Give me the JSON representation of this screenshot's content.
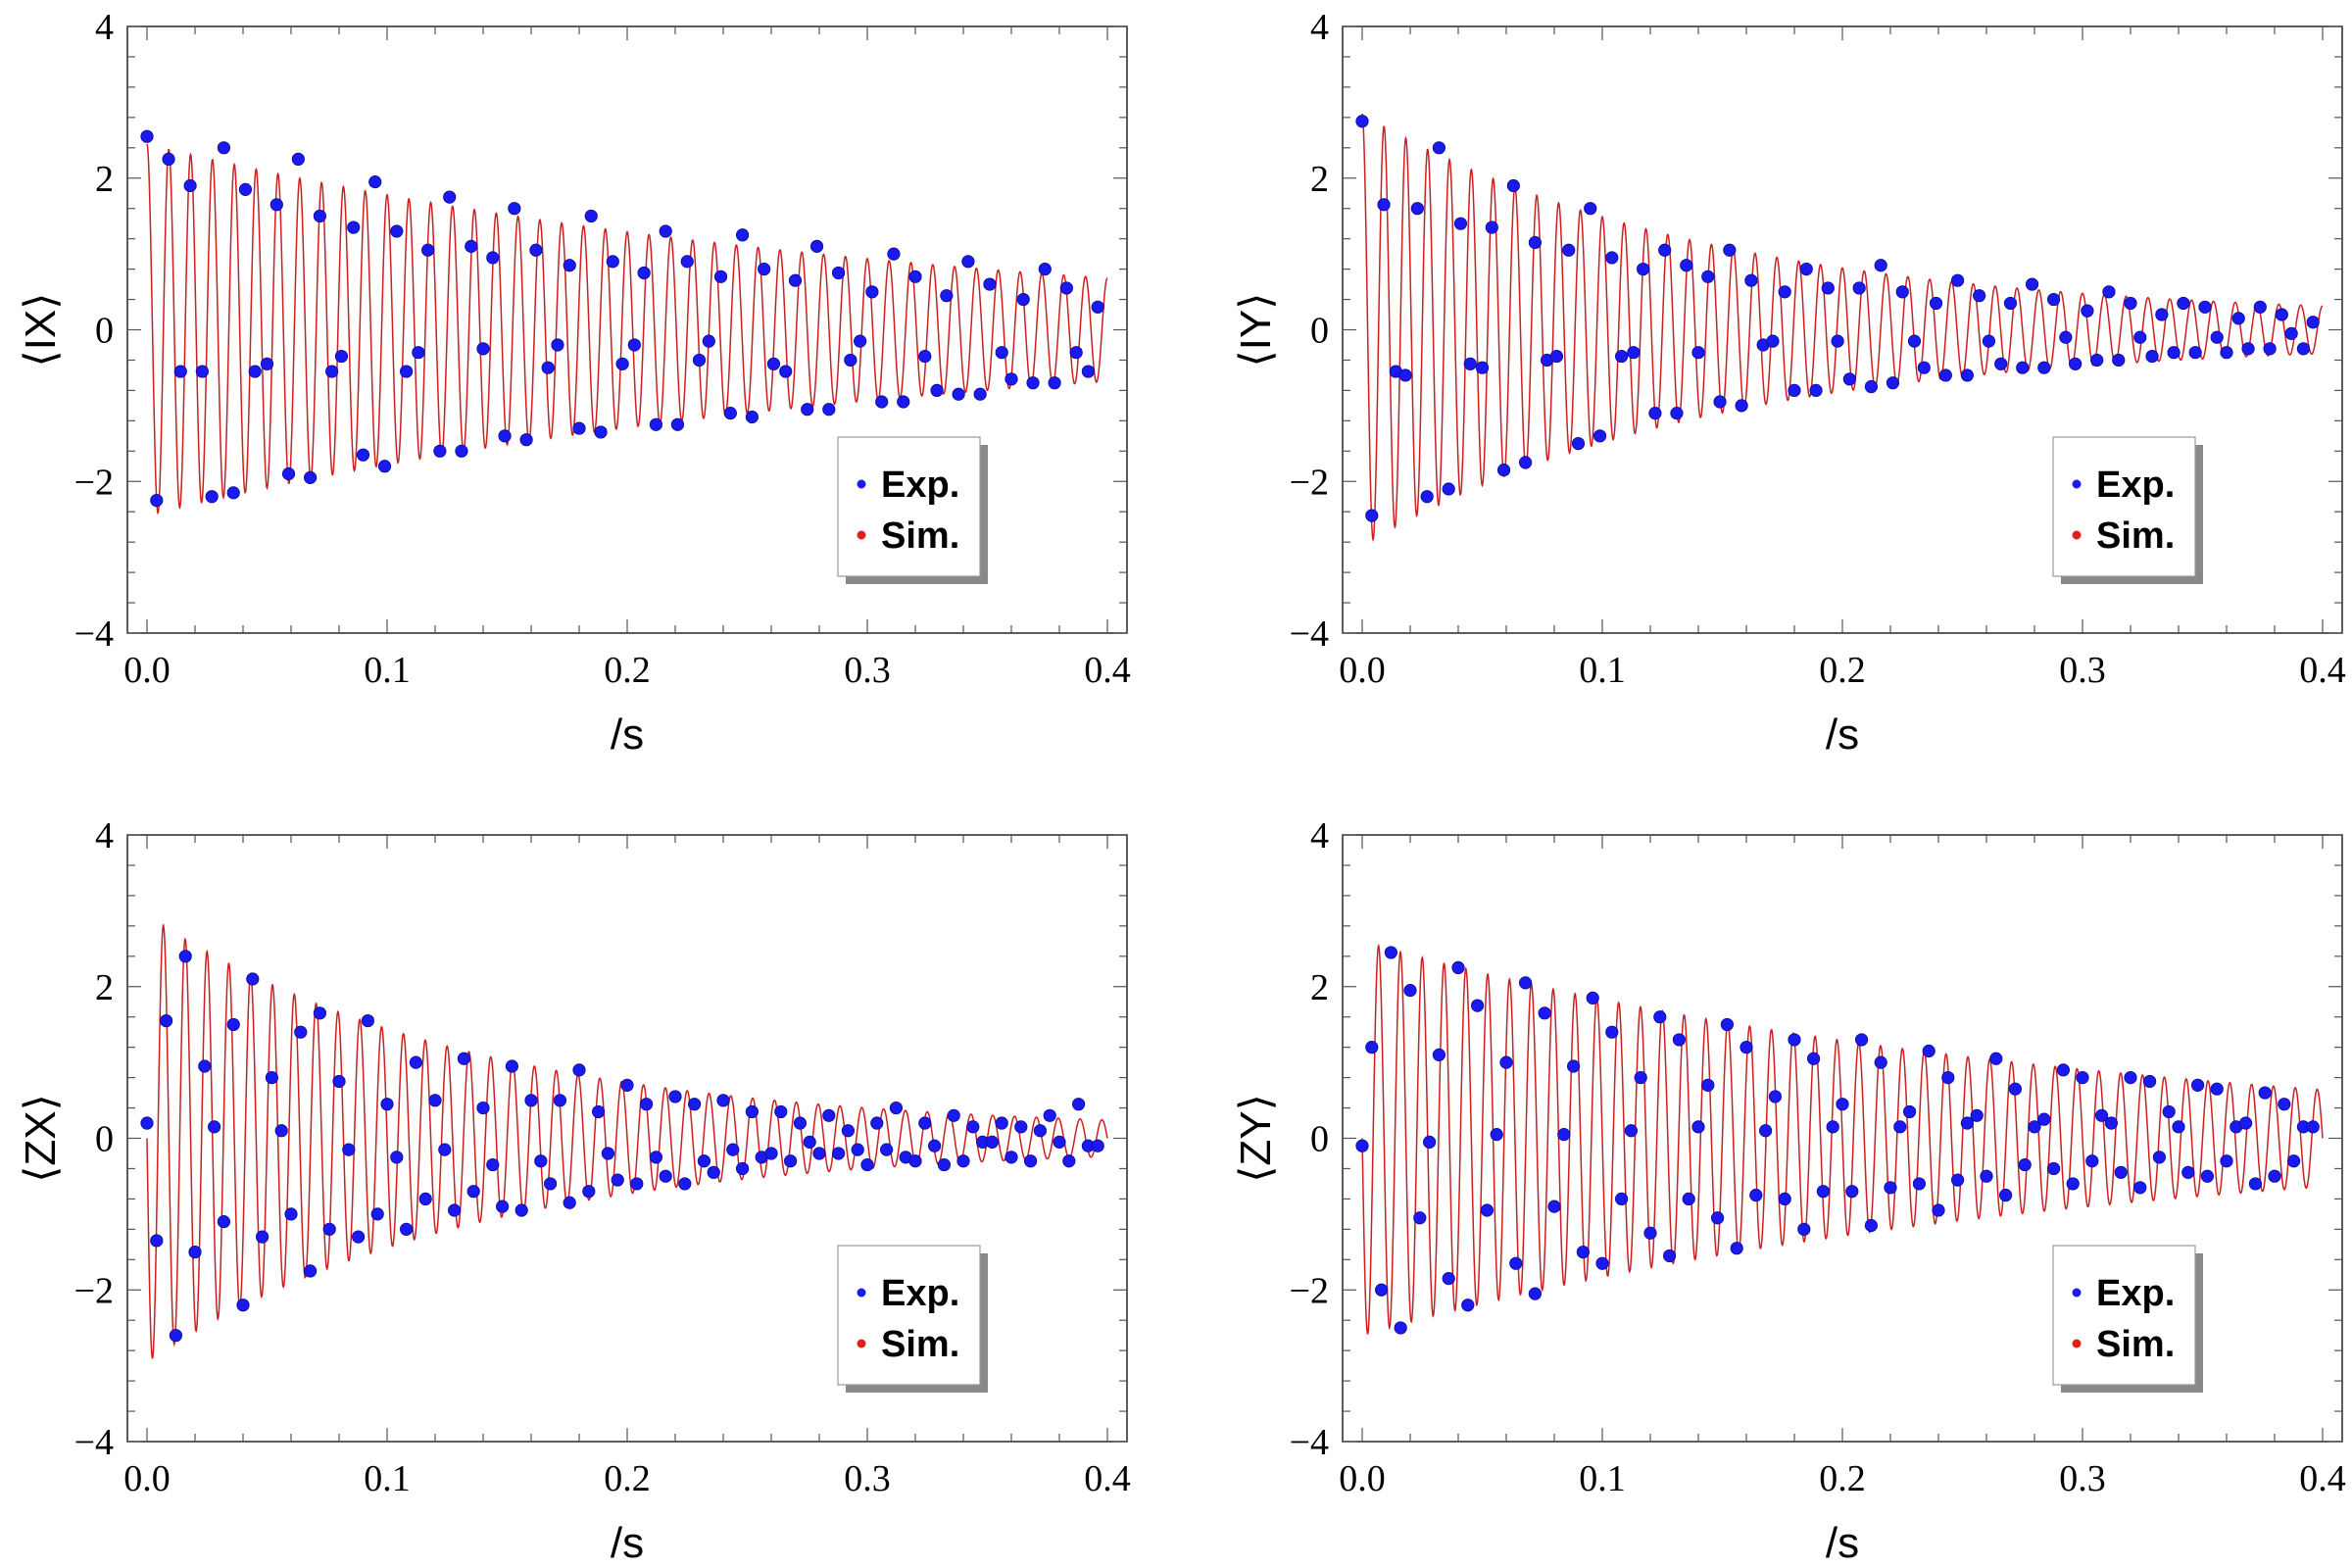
{
  "chart_data": [
    {
      "type": "scatter",
      "panel": "top-left",
      "ylabel": "⟨IX⟩",
      "xlabel": "/s",
      "xlim": [
        0.0,
        0.4
      ],
      "ylim": [
        -4,
        4
      ],
      "x_ticks": [
        "0.0",
        "0.1",
        "0.2",
        "0.3",
        "0.4"
      ],
      "y_ticks": [
        "−4",
        "−2",
        "0",
        "2",
        "4"
      ],
      "legend": [
        {
          "label": "Exp.",
          "color": "#1a1aee"
        },
        {
          "label": "Sim.",
          "color": "#e0201a"
        }
      ],
      "legend_position": "bottom-right",
      "series": [
        {
          "name": "Sim.",
          "kind": "line",
          "color": "#cc2020",
          "model": {
            "amplitude": 2.45,
            "decay_per_s": 3.2,
            "floor": 0.0,
            "frequency_hz": 110,
            "phase_rad": 0.0
          }
        },
        {
          "name": "Exp.",
          "kind": "points",
          "color": "#1a1aee",
          "x": [
            0.0,
            0.004,
            0.009,
            0.014,
            0.018,
            0.023,
            0.027,
            0.032,
            0.036,
            0.041,
            0.045,
            0.05,
            0.054,
            0.059,
            0.063,
            0.068,
            0.072,
            0.077,
            0.081,
            0.086,
            0.09,
            0.095,
            0.099,
            0.104,
            0.108,
            0.113,
            0.117,
            0.122,
            0.126,
            0.131,
            0.135,
            0.14,
            0.144,
            0.149,
            0.153,
            0.158,
            0.162,
            0.167,
            0.171,
            0.176,
            0.18,
            0.185,
            0.189,
            0.194,
            0.198,
            0.203,
            0.207,
            0.212,
            0.216,
            0.221,
            0.225,
            0.23,
            0.234,
            0.239,
            0.243,
            0.248,
            0.252,
            0.257,
            0.261,
            0.266,
            0.27,
            0.275,
            0.279,
            0.284,
            0.288,
            0.293,
            0.297,
            0.302,
            0.306,
            0.311,
            0.315,
            0.32,
            0.324,
            0.329,
            0.333,
            0.338,
            0.342,
            0.347,
            0.351,
            0.356,
            0.36,
            0.365,
            0.369,
            0.374,
            0.378,
            0.383,
            0.387,
            0.392,
            0.396
          ],
          "y": [
            2.55,
            -2.25,
            2.25,
            -0.55,
            1.9,
            -0.55,
            -2.2,
            2.4,
            -2.15,
            1.85,
            -0.55,
            -0.45,
            1.65,
            -1.9,
            2.25,
            -1.95,
            1.5,
            -0.55,
            -0.35,
            1.35,
            -1.65,
            1.95,
            -1.8,
            1.3,
            -0.55,
            -0.3,
            1.05,
            -1.6,
            1.75,
            -1.6,
            1.1,
            -0.25,
            0.95,
            -1.4,
            1.6,
            -1.45,
            1.05,
            -0.5,
            -0.2,
            0.85,
            -1.3,
            1.5,
            -1.35,
            0.9,
            -0.45,
            -0.2,
            0.75,
            -1.25,
            1.3,
            -1.25,
            0.9,
            -0.4,
            -0.15,
            0.7,
            -1.1,
            1.25,
            -1.15,
            0.8,
            -0.45,
            -0.55,
            0.65,
            -1.05,
            1.1,
            -1.05,
            0.75,
            -0.4,
            -0.15,
            0.5,
            -0.95,
            1.0,
            -0.95,
            0.7,
            -0.35,
            -0.8,
            0.45,
            -0.85,
            0.9,
            -0.85,
            0.6,
            -0.3,
            -0.65,
            0.4,
            -0.7,
            0.8,
            -0.7,
            0.55,
            -0.3,
            -0.55,
            0.3
          ]
        }
      ]
    },
    {
      "type": "scatter",
      "panel": "top-right",
      "ylabel": "⟨IY⟩",
      "xlabel": "/s",
      "xlim": [
        0.0,
        0.4
      ],
      "ylim": [
        -4,
        4
      ],
      "x_ticks": [
        "0.0",
        "0.1",
        "0.2",
        "0.3",
        "0.4"
      ],
      "y_ticks": [
        "−4",
        "−2",
        "0",
        "2",
        "4"
      ],
      "legend": [
        {
          "label": "Exp.",
          "color": "#1a1aee"
        },
        {
          "label": "Sim.",
          "color": "#e0201a"
        }
      ],
      "legend_position": "bottom-right",
      "series": [
        {
          "name": "Sim.",
          "kind": "line",
          "color": "#cc2020",
          "model": {
            "amplitude": 2.7,
            "decay_per_s": 7.0,
            "floor": 0.15,
            "frequency_hz": 110,
            "phase_rad": 0.0
          }
        },
        {
          "name": "Exp.",
          "kind": "points",
          "color": "#1a1aee",
          "x": [
            0.0,
            0.004,
            0.009,
            0.014,
            0.018,
            0.023,
            0.027,
            0.032,
            0.036,
            0.041,
            0.045,
            0.05,
            0.054,
            0.059,
            0.063,
            0.068,
            0.072,
            0.077,
            0.081,
            0.086,
            0.09,
            0.095,
            0.099,
            0.104,
            0.108,
            0.113,
            0.117,
            0.122,
            0.126,
            0.131,
            0.135,
            0.14,
            0.144,
            0.149,
            0.153,
            0.158,
            0.162,
            0.167,
            0.171,
            0.176,
            0.18,
            0.185,
            0.189,
            0.194,
            0.198,
            0.203,
            0.207,
            0.212,
            0.216,
            0.221,
            0.225,
            0.23,
            0.234,
            0.239,
            0.243,
            0.248,
            0.252,
            0.257,
            0.261,
            0.266,
            0.27,
            0.275,
            0.279,
            0.284,
            0.288,
            0.293,
            0.297,
            0.302,
            0.306,
            0.311,
            0.315,
            0.32,
            0.324,
            0.329,
            0.333,
            0.338,
            0.342,
            0.347,
            0.351,
            0.356,
            0.36,
            0.365,
            0.369,
            0.374,
            0.378,
            0.383,
            0.387,
            0.392,
            0.396
          ],
          "y": [
            2.75,
            -2.45,
            1.65,
            -0.55,
            -0.6,
            1.6,
            -2.2,
            2.4,
            -2.1,
            1.4,
            -0.45,
            -0.5,
            1.35,
            -1.85,
            1.9,
            -1.75,
            1.15,
            -0.4,
            -0.35,
            1.05,
            -1.5,
            1.6,
            -1.4,
            0.95,
            -0.35,
            -0.3,
            0.8,
            -1.1,
            1.05,
            -1.1,
            0.85,
            -0.3,
            0.7,
            -0.95,
            1.05,
            -1.0,
            0.65,
            -0.2,
            -0.15,
            0.5,
            -0.8,
            0.8,
            -0.8,
            0.55,
            -0.15,
            -0.65,
            0.55,
            -0.75,
            0.85,
            -0.7,
            0.5,
            -0.15,
            -0.5,
            0.35,
            -0.6,
            0.65,
            -0.6,
            0.45,
            -0.15,
            -0.45,
            0.35,
            -0.5,
            0.6,
            -0.5,
            0.4,
            -0.1,
            -0.45,
            0.25,
            -0.4,
            0.5,
            -0.4,
            0.35,
            -0.1,
            -0.35,
            0.2,
            -0.3,
            0.35,
            -0.3,
            0.3,
            -0.1,
            -0.3,
            0.15,
            -0.25,
            0.3,
            -0.25,
            0.2,
            -0.05,
            -0.25,
            0.1
          ]
        }
      ]
    },
    {
      "type": "scatter",
      "panel": "bottom-left",
      "ylabel": "⟨ZX⟩",
      "xlabel": "/s",
      "xlim": [
        0.0,
        0.4
      ],
      "ylim": [
        -4,
        4
      ],
      "x_ticks": [
        "0.0",
        "0.1",
        "0.2",
        "0.3",
        "0.4"
      ],
      "y_ticks": [
        "−4",
        "−2",
        "0",
        "2",
        "4"
      ],
      "legend": [
        {
          "label": "Exp.",
          "color": "#1a1aee"
        },
        {
          "label": "Sim.",
          "color": "#e0201a"
        }
      ],
      "legend_position": "bottom-right",
      "series": [
        {
          "name": "Sim.",
          "kind": "line",
          "color": "#cc2020",
          "model": {
            "amplitude": 2.85,
            "decay_per_s": 7.5,
            "floor": 0.1,
            "frequency_hz": 110,
            "phase_rad": 1.5708
          }
        },
        {
          "name": "Exp.",
          "kind": "points",
          "color": "#1a1aee",
          "x": [
            0.0,
            0.004,
            0.008,
            0.012,
            0.016,
            0.02,
            0.024,
            0.028,
            0.032,
            0.036,
            0.04,
            0.044,
            0.048,
            0.052,
            0.056,
            0.06,
            0.064,
            0.068,
            0.072,
            0.076,
            0.08,
            0.084,
            0.088,
            0.092,
            0.096,
            0.1,
            0.104,
            0.108,
            0.112,
            0.116,
            0.12,
            0.124,
            0.128,
            0.132,
            0.136,
            0.14,
            0.144,
            0.148,
            0.152,
            0.156,
            0.16,
            0.164,
            0.168,
            0.172,
            0.176,
            0.18,
            0.184,
            0.188,
            0.192,
            0.196,
            0.2,
            0.204,
            0.208,
            0.212,
            0.216,
            0.22,
            0.224,
            0.228,
            0.232,
            0.236,
            0.24,
            0.244,
            0.248,
            0.252,
            0.256,
            0.26,
            0.264,
            0.268,
            0.272,
            0.276,
            0.28,
            0.284,
            0.288,
            0.292,
            0.296,
            0.3,
            0.304,
            0.308,
            0.312,
            0.316,
            0.32,
            0.324,
            0.328,
            0.332,
            0.336,
            0.34,
            0.344,
            0.348,
            0.352,
            0.356,
            0.36,
            0.364,
            0.368,
            0.372,
            0.376,
            0.38,
            0.384,
            0.388,
            0.392,
            0.396
          ],
          "y": [
            0.2,
            -1.35,
            1.55,
            -2.6,
            2.4,
            -1.5,
            0.95,
            0.15,
            -1.1,
            1.5,
            -2.2,
            2.1,
            -1.3,
            0.8,
            0.1,
            -1.0,
            1.4,
            -1.75,
            1.65,
            -1.2,
            0.75,
            -0.15,
            -1.3,
            1.55,
            -1.0,
            0.45,
            -0.25,
            -1.2,
            1.0,
            -0.8,
            0.5,
            -0.15,
            -0.95,
            1.05,
            -0.7,
            0.4,
            -0.35,
            -0.9,
            0.95,
            -0.95,
            0.5,
            -0.3,
            -0.6,
            0.5,
            -0.85,
            0.9,
            -0.7,
            0.35,
            -0.2,
            -0.55,
            0.7,
            -0.6,
            0.45,
            -0.25,
            -0.5,
            0.55,
            -0.6,
            0.45,
            -0.3,
            -0.45,
            0.5,
            -0.15,
            -0.4,
            0.35,
            -0.25,
            -0.2,
            0.35,
            -0.3,
            0.2,
            -0.05,
            -0.2,
            0.3,
            -0.2,
            0.1,
            -0.15,
            -0.35,
            0.2,
            -0.15,
            0.4,
            -0.25,
            -0.3,
            0.2,
            -0.1,
            -0.35,
            0.3,
            -0.3,
            0.15,
            -0.05,
            -0.05,
            0.2,
            -0.25,
            0.15,
            -0.3,
            0.1,
            0.3,
            -0.05,
            -0.3,
            0.45,
            -0.1,
            -0.1
          ]
        }
      ]
    },
    {
      "type": "scatter",
      "panel": "bottom-right",
      "ylabel": "⟨ZY⟩",
      "xlabel": "/s",
      "xlim": [
        0.0,
        0.4
      ],
      "ylim": [
        -4,
        4
      ],
      "x_ticks": [
        "0.0",
        "0.1",
        "0.2",
        "0.3",
        "0.4"
      ],
      "y_ticks": [
        "−4",
        "−2",
        "0",
        "2",
        "4"
      ],
      "legend": [
        {
          "label": "Exp.",
          "color": "#1a1aee"
        },
        {
          "label": "Sim.",
          "color": "#e0201a"
        }
      ],
      "legend_position": "bottom-right",
      "series": [
        {
          "name": "Sim.",
          "kind": "line",
          "color": "#cc2020",
          "model": {
            "amplitude": 2.6,
            "decay_per_s": 3.5,
            "floor": 0.0,
            "frequency_hz": 110,
            "phase_rad": 1.5708
          }
        },
        {
          "name": "Exp.",
          "kind": "points",
          "color": "#1a1aee",
          "x": [
            0.0,
            0.004,
            0.008,
            0.012,
            0.016,
            0.02,
            0.024,
            0.028,
            0.032,
            0.036,
            0.04,
            0.044,
            0.048,
            0.052,
            0.056,
            0.06,
            0.064,
            0.068,
            0.072,
            0.076,
            0.08,
            0.084,
            0.088,
            0.092,
            0.096,
            0.1,
            0.104,
            0.108,
            0.112,
            0.116,
            0.12,
            0.124,
            0.128,
            0.132,
            0.136,
            0.14,
            0.144,
            0.148,
            0.152,
            0.156,
            0.16,
            0.164,
            0.168,
            0.172,
            0.176,
            0.18,
            0.184,
            0.188,
            0.192,
            0.196,
            0.2,
            0.204,
            0.208,
            0.212,
            0.216,
            0.22,
            0.224,
            0.228,
            0.232,
            0.236,
            0.24,
            0.244,
            0.248,
            0.252,
            0.256,
            0.26,
            0.264,
            0.268,
            0.272,
            0.276,
            0.28,
            0.284,
            0.288,
            0.292,
            0.296,
            0.3,
            0.304,
            0.308,
            0.312,
            0.316,
            0.32,
            0.324,
            0.328,
            0.332,
            0.336,
            0.34,
            0.344,
            0.348,
            0.352,
            0.356,
            0.36,
            0.364,
            0.368,
            0.372,
            0.376,
            0.38,
            0.384,
            0.388,
            0.392,
            0.396
          ],
          "y": [
            -0.1,
            1.2,
            -2.0,
            2.45,
            -2.5,
            1.95,
            -1.05,
            -0.05,
            1.1,
            -1.85,
            2.25,
            -2.2,
            1.75,
            -0.95,
            0.05,
            1.0,
            -1.65,
            2.05,
            -2.05,
            1.65,
            -0.9,
            0.05,
            0.95,
            -1.5,
            1.85,
            -1.65,
            1.4,
            -0.8,
            0.1,
            0.8,
            -1.25,
            1.6,
            -1.55,
            1.3,
            -0.8,
            0.15,
            0.7,
            -1.05,
            1.5,
            -1.45,
            1.2,
            -0.75,
            0.1,
            0.55,
            -0.8,
            1.3,
            -1.2,
            1.05,
            -0.7,
            0.15,
            0.45,
            -0.7,
            1.3,
            -1.15,
            1.0,
            -0.65,
            0.15,
            0.35,
            -0.6,
            1.15,
            -0.95,
            0.8,
            -0.55,
            0.2,
            0.3,
            -0.5,
            1.05,
            -0.75,
            0.65,
            -0.35,
            0.15,
            0.25,
            -0.4,
            0.9,
            -0.6,
            0.8,
            -0.3,
            0.3,
            0.2,
            -0.45,
            0.8,
            -0.65,
            0.75,
            -0.25,
            0.35,
            0.15,
            -0.45,
            0.7,
            -0.5,
            0.65,
            -0.3,
            0.15,
            0.2,
            -0.6,
            0.6,
            -0.5,
            0.45,
            -0.3,
            0.15,
            0.15
          ]
        }
      ]
    }
  ]
}
